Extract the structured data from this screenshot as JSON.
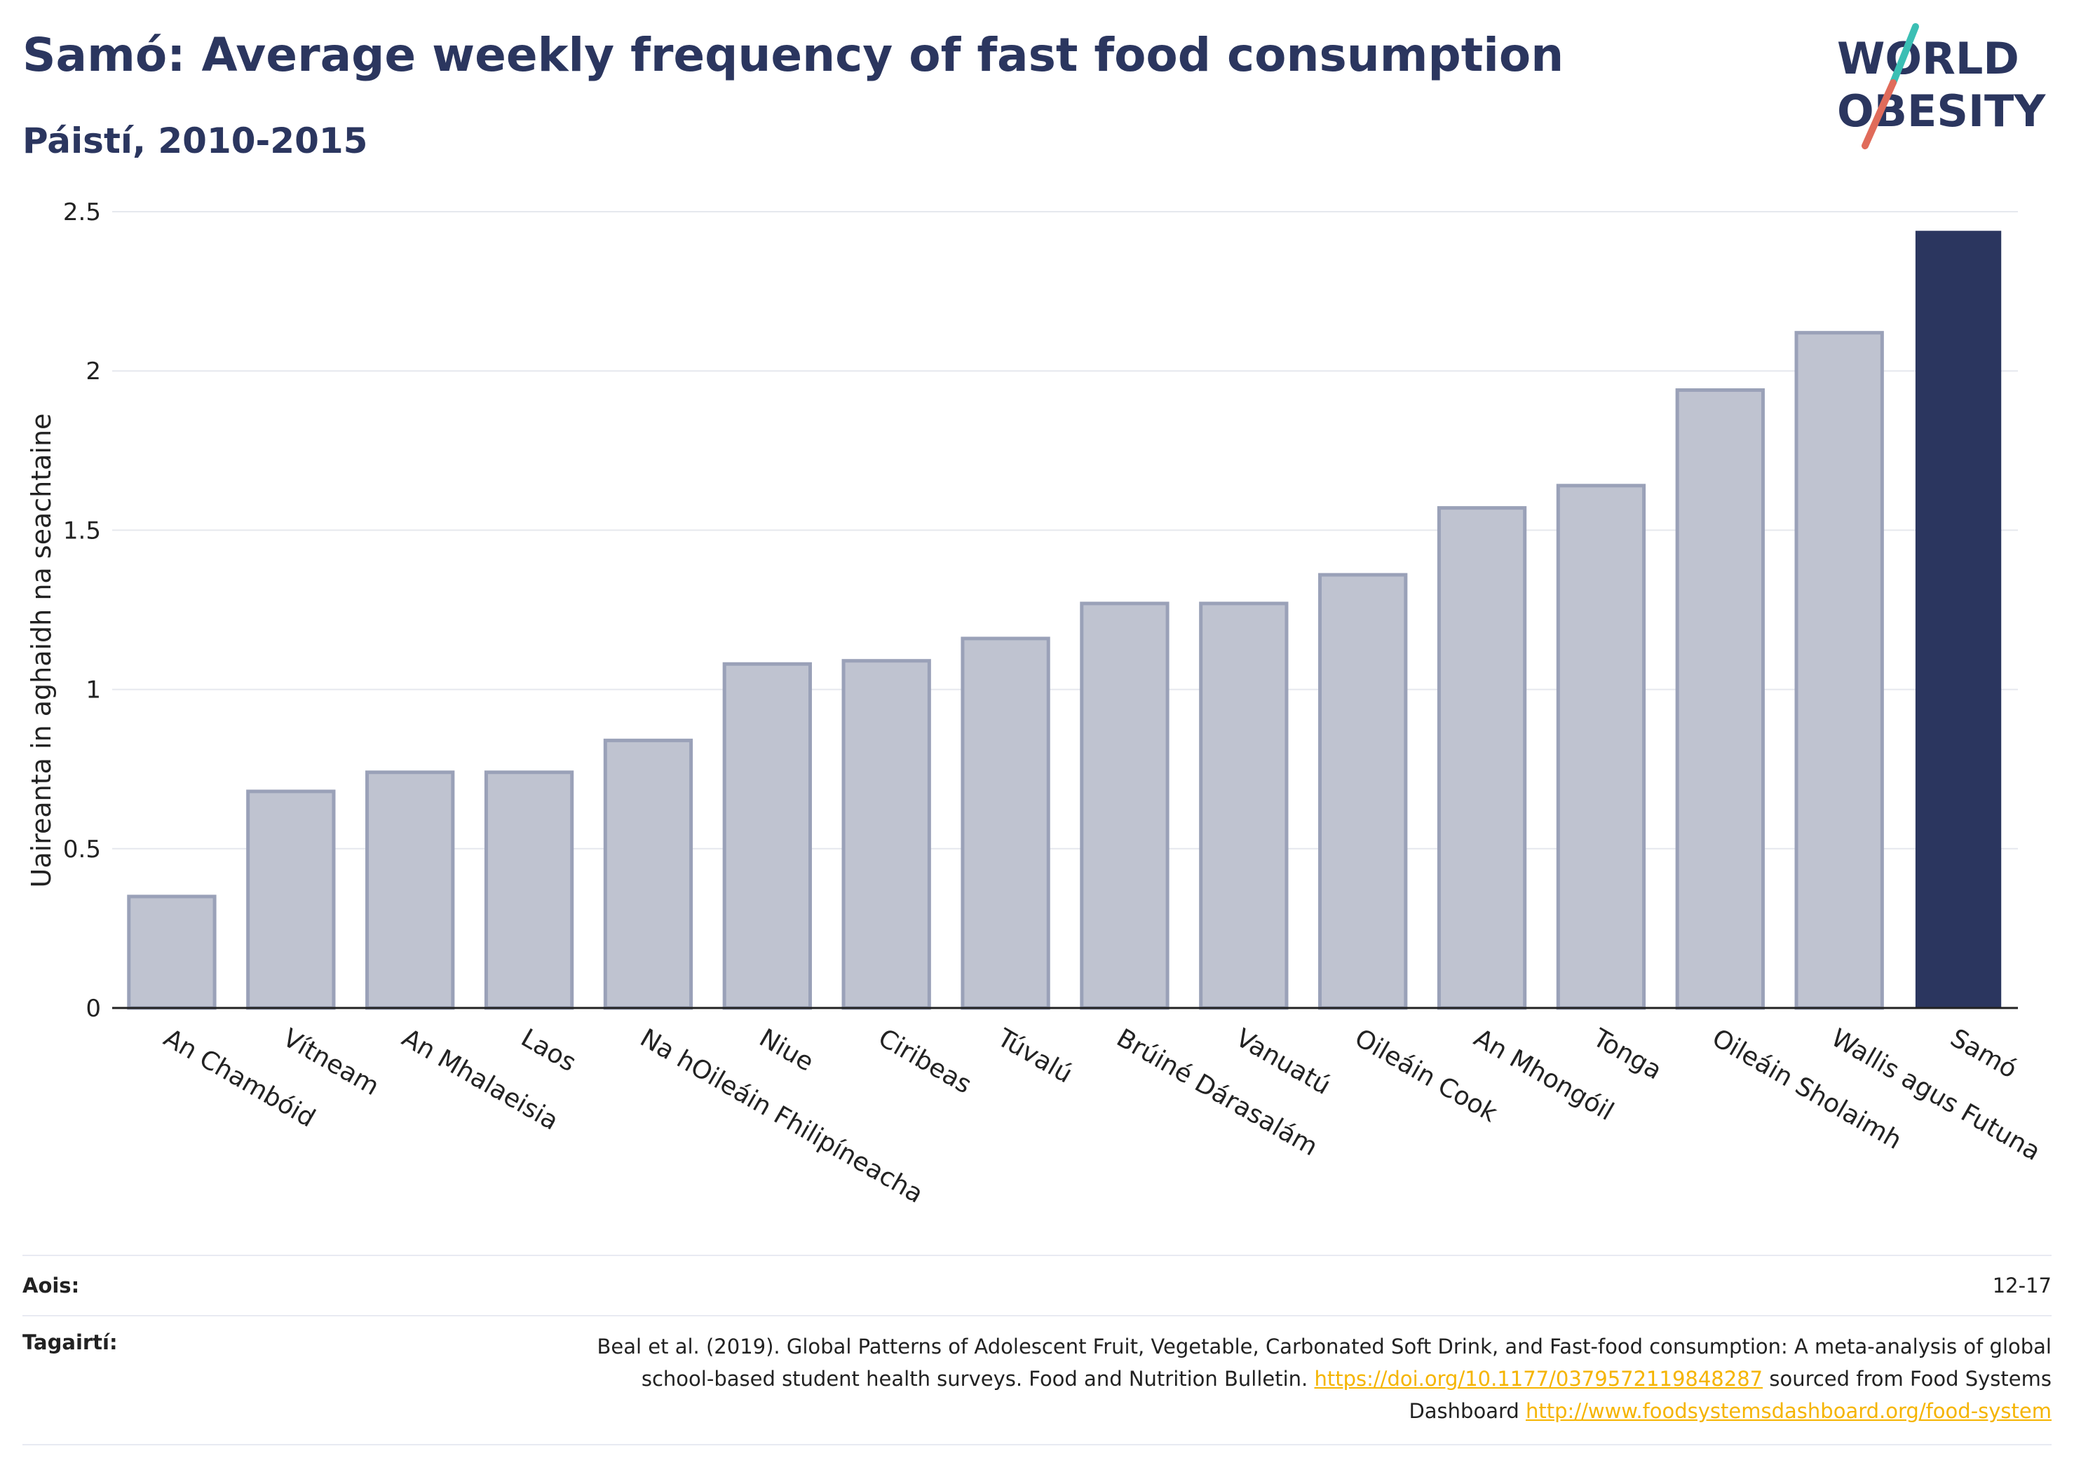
{
  "header": {
    "title": "Samó: Average weekly frequency of fast food consumption",
    "subtitle": "Páistí, 2010-2015"
  },
  "logo": {
    "line1": "WORLD",
    "line2": "OBESITY",
    "accent_teal": "#3bbfb4",
    "accent_red": "#e06b5a"
  },
  "chart_data": {
    "type": "bar",
    "title": "Samó: Average weekly frequency of fast food consumption",
    "subtitle": "Páistí, 2010-2015",
    "xlabel": "",
    "ylabel": "Uaireanta in aghaidh na seachtaine",
    "ylim": [
      0,
      2.5
    ],
    "yticks": [
      "0",
      "0.5",
      "1",
      "1.5",
      "2",
      "2.5"
    ],
    "ytick_values": [
      0,
      0.5,
      1,
      1.5,
      2,
      2.5
    ],
    "grid": true,
    "categories": [
      "An Chambóid",
      "Vítneam",
      "An Mhalaeisia",
      "Laos",
      "Na hOileáin Fhilipíneacha",
      "Niue",
      "Ciribeas",
      "Túvalú",
      "Brúiné Dárasalám",
      "Vanuatú",
      "Oileáin Cook",
      "An Mhongóil",
      "Tonga",
      "Oileáin Sholaimh",
      "Wallis agus Futuna",
      "Samó"
    ],
    "values": [
      0.35,
      0.68,
      0.74,
      0.74,
      0.84,
      1.08,
      1.09,
      1.16,
      1.27,
      1.27,
      1.36,
      1.57,
      1.64,
      1.94,
      2.12,
      2.44
    ],
    "highlight": "Samó",
    "colors": {
      "bar": "#bfc3d0",
      "bar_edge": "#9aa1b8",
      "highlight": "#2b365f",
      "grid": "#e6e8ee",
      "axis": "#222222"
    }
  },
  "footer": {
    "age_label": "Aois:",
    "age_value": "12-17",
    "ref_label": "Tagairtí:",
    "ref_text_1": "Beal et al. (2019). Global Patterns of Adolescent Fruit, Vegetable, Carbonated Soft Drink, and Fast-food consumption: A meta-analysis of global school-based student health surveys. Food and Nutrition Bulletin.",
    "ref_link_1": "https://doi.org/10.1177/0379572119848287",
    "ref_text_2": "sourced from Food Systems Dashboard",
    "ref_link_2": "http://www.foodsystemsdashboard.org/food-system"
  }
}
